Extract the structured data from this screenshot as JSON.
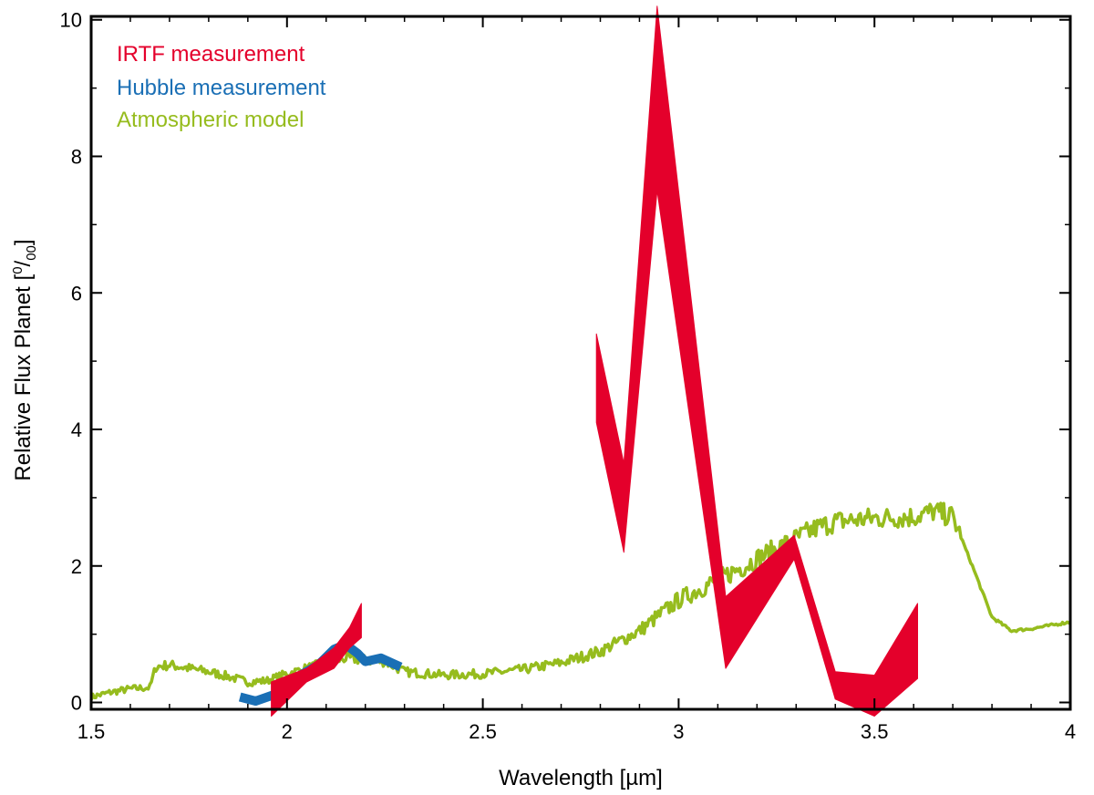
{
  "chart_data": {
    "type": "line",
    "title": "",
    "xlabel": "Wavelength [µm]",
    "ylabel_main": "Relative Flux Planet [",
    "ylabel_sup": "0",
    "ylabel_slash": "/",
    "ylabel_sub": "00",
    "ylabel_end": "]",
    "xlim": [
      1.5,
      4.0
    ],
    "ylim": [
      -0.1,
      10.05
    ],
    "x_ticks": [
      1.5,
      2.0,
      2.5,
      3.0,
      3.5,
      4.0
    ],
    "x_tick_labels": [
      "1.5",
      "2",
      "2.5",
      "3",
      "3.5",
      "4"
    ],
    "y_ticks": [
      0,
      2,
      4,
      6,
      8,
      10
    ],
    "y_tick_labels": [
      "0",
      "2",
      "4",
      "6",
      "8",
      "10"
    ],
    "grid": false,
    "legend_position": "top-left",
    "series": [
      {
        "name": "IRTF measurement",
        "color": "#e4002b",
        "style": "band",
        "segments": [
          {
            "x": [
              1.96,
              2.05,
              2.12,
              2.16,
              2.19
            ],
            "y_low": [
              -0.2,
              0.3,
              0.5,
              0.8,
              0.95
            ],
            "y_high": [
              0.3,
              0.5,
              0.8,
              1.1,
              1.45
            ]
          },
          {
            "x": [
              2.79,
              2.86,
              2.945,
              3.12,
              3.295,
              3.4,
              3.5,
              3.61
            ],
            "y_low": [
              4.1,
              2.2,
              7.5,
              0.5,
              2.1,
              0.05,
              -0.2,
              0.35
            ],
            "y_high": [
              5.4,
              3.5,
              10.2,
              1.55,
              2.45,
              0.45,
              0.4,
              1.45
            ]
          }
        ]
      },
      {
        "name": "Hubble measurement",
        "color": "#1a6fb5",
        "style": "thick-line",
        "x": [
          1.88,
          1.92,
          1.97,
          2.0,
          2.04,
          2.08,
          2.12,
          2.15,
          2.18,
          2.2,
          2.24,
          2.29
        ],
        "y": [
          0.08,
          0.02,
          0.12,
          0.28,
          0.42,
          0.55,
          0.78,
          0.85,
          0.72,
          0.6,
          0.65,
          0.52
        ]
      },
      {
        "name": "Atmospheric model",
        "color": "#96bc1e",
        "style": "noisy-line",
        "x": [
          1.5,
          1.55,
          1.6,
          1.65,
          1.665,
          1.7,
          1.75,
          1.8,
          1.85,
          1.9,
          1.95,
          2.0,
          2.05,
          2.1,
          2.15,
          2.2,
          2.25,
          2.3,
          2.4,
          2.5,
          2.6,
          2.7,
          2.8,
          2.9,
          3.0,
          3.1,
          3.2,
          3.3,
          3.35,
          3.4,
          3.5,
          3.6,
          3.65,
          3.7,
          3.75,
          3.8,
          3.85,
          3.9,
          4.0
        ],
        "y": [
          0.08,
          0.15,
          0.2,
          0.22,
          0.52,
          0.55,
          0.5,
          0.45,
          0.38,
          0.3,
          0.32,
          0.42,
          0.5,
          0.58,
          0.65,
          0.62,
          0.6,
          0.45,
          0.4,
          0.42,
          0.48,
          0.58,
          0.75,
          1.05,
          1.5,
          1.8,
          2.1,
          2.4,
          2.55,
          2.65,
          2.7,
          2.72,
          2.8,
          2.72,
          2.0,
          1.25,
          1.05,
          1.08,
          1.18
        ]
      }
    ]
  }
}
